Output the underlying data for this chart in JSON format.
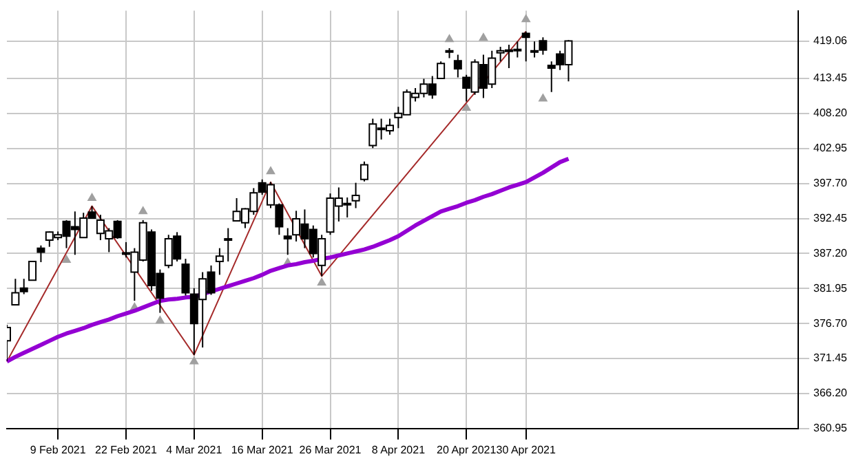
{
  "chart_data": {
    "type": "candlestick",
    "grid": true,
    "legend": false,
    "colors": [
      "#ffffff",
      "#ffffff",
      "#000000",
      "#ffffff",
      "#000000",
      "#ffffff",
      "#ffffff",
      "#000000",
      "#000000",
      "#ffffff",
      "#000000",
      "#ffffff",
      "#ffffff",
      "#000000",
      "#000000",
      "#ffffff",
      "#ffffff",
      "#000000",
      "#000000",
      "#ffffff",
      "#000000",
      "#000000",
      "#000000",
      "#ffffff",
      "#000000",
      "#ffffff",
      "#ffffff",
      "#ffffff",
      "#ffffff",
      "#ffffff",
      "#000000",
      "#ffffff",
      "#000000",
      "#000000",
      "#ffffff",
      "#000000",
      "#000000",
      "#ffffff",
      "#ffffff",
      "#ffffff",
      "#ffffff",
      "#ffffff",
      "#ffffff",
      "#ffffff",
      "#ffffff",
      "#ffffff",
      "#ffffff",
      "#ffffff",
      "#ffffff",
      "#ffffff",
      "#000000",
      "#ffffff",
      "#ffffff",
      "#000000",
      "#000000",
      "#ffffff",
      "#000000",
      "#ffffff",
      "#ffffff",
      "#ffffff",
      "#ffffff",
      "#000000",
      "#ffffff",
      "#000000",
      "#000000",
      "#000000",
      "#ffffff",
      null,
      null,
      null,
      null,
      null,
      null,
      null,
      null,
      null,
      null,
      null,
      null,
      null,
      null,
      null,
      null,
      null,
      null,
      null,
      null,
      null,
      null,
      null,
      null,
      null,
      null,
      null
    ],
    "categories": [
      null,
      null,
      null,
      null,
      null,
      null,
      "9 Feb 2021",
      null,
      null,
      null,
      null,
      null,
      null,
      null,
      "22 Feb 2021",
      null,
      null,
      null,
      null,
      null,
      null,
      null,
      "4 Mar 2021",
      null,
      null,
      null,
      null,
      null,
      null,
      null,
      "16 Mar 2021",
      null,
      null,
      null,
      null,
      null,
      null,
      null,
      "26 Mar 2021",
      null,
      null,
      null,
      null,
      null,
      null,
      null,
      "8 Apr 2021",
      null,
      null,
      null,
      null,
      null,
      null,
      null,
      "20 Apr 2021",
      null,
      null,
      null,
      null,
      null,
      null,
      "30 Apr 2021",
      null,
      null,
      null,
      null,
      null,
      null,
      null,
      null,
      null,
      null,
      null,
      null,
      null,
      null,
      null,
      null,
      null,
      null,
      null,
      null,
      null,
      null,
      null,
      null,
      null,
      null,
      null,
      null,
      null,
      null,
      null,
      null
    ],
    "ylim": [
      360.95,
      423.6
    ],
    "yticks": [
      360.95,
      {
        "value": 366.2,
        "label": "366.20"
      },
      371.45,
      {
        "value": 376.7,
        "label": "376.70"
      },
      381.95,
      {
        "value": 387.2,
        "label": "387.20"
      },
      392.45,
      {
        "value": 397.7,
        "label": "397.70"
      },
      402.95,
      {
        "value": 408.2,
        "label": "408.20"
      },
      413.45,
      419.06
    ],
    "ohlc": [
      [
        374.1,
        376.5,
        371.05,
        376.1
      ],
      [
        379.5,
        383.4,
        379.5,
        381.3
      ],
      [
        382.0,
        383.4,
        381.1,
        381.5
      ],
      [
        383.2,
        386.0,
        383.2,
        386.0
      ],
      [
        388.0,
        388.4,
        385.9,
        387.4
      ],
      [
        389.2,
        390.5,
        388.2,
        390.4
      ],
      [
        389.6,
        390.5,
        389.2,
        390.0
      ],
      [
        392.0,
        392.2,
        388.0,
        389.8
      ],
      [
        391.2,
        393.5,
        387.0,
        390.8
      ],
      [
        389.6,
        393.3,
        389.6,
        392.5
      ],
      [
        393.4,
        394.3,
        392.5,
        392.5
      ],
      [
        390.2,
        393.0,
        389.2,
        392.2
      ],
      [
        389.4,
        391.0,
        387.4,
        390.6
      ],
      [
        392.0,
        392.2,
        389.4,
        389.6
      ],
      [
        387.3,
        388.9,
        386.6,
        387.1
      ],
      [
        384.4,
        388.0,
        380.1,
        387.4
      ],
      [
        386.2,
        392.2,
        386.0,
        391.8
      ],
      [
        390.4,
        390.8,
        381.6,
        382.4
      ],
      [
        384.2,
        384.8,
        378.3,
        380.5
      ],
      [
        385.4,
        390.0,
        385.0,
        389.4
      ],
      [
        389.8,
        390.4,
        386.0,
        386.4
      ],
      [
        385.6,
        386.4,
        380.9,
        381.3
      ],
      [
        381.1,
        382.0,
        372.0,
        376.7
      ],
      [
        380.3,
        384.4,
        373.1,
        383.4
      ],
      [
        384.4,
        385.4,
        381.0,
        381.3
      ],
      [
        386.0,
        388.0,
        384.0,
        386.8
      ],
      [
        389.2,
        391.0,
        386.0,
        389.4
      ],
      [
        392.1,
        395.5,
        392.0,
        393.5
      ],
      [
        391.8,
        394.0,
        391.0,
        393.9
      ],
      [
        393.5,
        397.0,
        393.0,
        396.3
      ],
      [
        397.8,
        398.3,
        396.0,
        396.4
      ],
      [
        394.5,
        397.9,
        394.0,
        397.5
      ],
      [
        394.5,
        394.7,
        390.0,
        391.2
      ],
      [
        389.8,
        391.0,
        387.0,
        389.4
      ],
      [
        390.0,
        393.6,
        389.0,
        392.4
      ],
      [
        391.6,
        393.8,
        388.0,
        389.4
      ],
      [
        390.8,
        391.4,
        386.6,
        387.2
      ],
      [
        385.4,
        390.0,
        383.8,
        389.4
      ],
      [
        390.4,
        396.2,
        390.0,
        395.5
      ],
      [
        394.3,
        397.1,
        392.0,
        395.5
      ],
      [
        394.5,
        395.6,
        392.6,
        394.7
      ],
      [
        395.1,
        397.8,
        394.0,
        395.9
      ],
      [
        398.3,
        401.0,
        398.0,
        400.5
      ],
      [
        403.4,
        407.4,
        403.0,
        406.6
      ],
      [
        405.9,
        407.4,
        404.3,
        406.0
      ],
      [
        405.6,
        407.4,
        405.0,
        406.4
      ],
      [
        407.6,
        409.2,
        406.0,
        408.2
      ],
      [
        408.0,
        411.8,
        408.0,
        411.4
      ],
      [
        410.6,
        412.0,
        410.0,
        411.2
      ],
      [
        411.2,
        413.4,
        410.6,
        412.6
      ],
      [
        412.6,
        413.8,
        410.4,
        411.0
      ],
      [
        413.45,
        416.0,
        413.4,
        415.7
      ],
      [
        417.5,
        418.0,
        416.5,
        417.6
      ],
      [
        416.1,
        417.0,
        413.6,
        414.9
      ],
      [
        413.6,
        414.0,
        410.0,
        412.0
      ],
      [
        411.4,
        416.3,
        411.0,
        415.9
      ],
      [
        415.5,
        417.0,
        410.5,
        412.0
      ],
      [
        412.6,
        417.6,
        412.0,
        416.5
      ],
      [
        417.3,
        418.2,
        416.0,
        417.6
      ],
      [
        417.5,
        418.5,
        415.0,
        417.7
      ],
      [
        417.8,
        419.0,
        416.6,
        417.6
      ],
      [
        420.2,
        420.5,
        416.0,
        419.6
      ],
      [
        417.6,
        419.0,
        416.6,
        417.6
      ],
      [
        419.1,
        419.6,
        417.0,
        417.7
      ],
      [
        415.4,
        416.0,
        411.4,
        415.0
      ],
      [
        417.1,
        417.6,
        414.7,
        415.5
      ],
      [
        415.5,
        419.2,
        413.0,
        419.06
      ],
      null,
      null,
      null,
      null,
      null,
      null,
      null,
      null,
      null,
      null,
      null,
      null,
      null,
      null,
      null,
      null,
      null,
      null,
      null,
      null,
      null,
      null,
      null,
      null,
      null,
      null,
      null
    ],
    "series": [
      {
        "type": "line",
        "color": "#9400d3",
        "marker": "none",
        "values": [
          371.0,
          371.7,
          372.3,
          372.9,
          373.5,
          374.1,
          374.7,
          375.2,
          375.6,
          376.0,
          376.5,
          376.9,
          377.3,
          377.8,
          378.2,
          378.6,
          379.1,
          379.6,
          380.1,
          380.3,
          380.4,
          380.6,
          380.7,
          381.1,
          381.5,
          381.9,
          382.3,
          382.7,
          383.1,
          383.5,
          384.0,
          384.6,
          385.0,
          385.4,
          385.6,
          385.9,
          386.1,
          386.4,
          386.6,
          386.9,
          387.2,
          387.5,
          387.8,
          388.2,
          388.7,
          389.2,
          389.8,
          390.6,
          391.4,
          392.1,
          392.8,
          393.5,
          393.9,
          394.3,
          394.8,
          395.2,
          395.7,
          396.1,
          396.6,
          397.1,
          397.5,
          397.9,
          398.6,
          399.3,
          400.1,
          400.9,
          401.4,
          null,
          null,
          null,
          null,
          null,
          null,
          null,
          null,
          null,
          null,
          null,
          null,
          null,
          null,
          null,
          null,
          null,
          null,
          null,
          null,
          null,
          null,
          null,
          null,
          null,
          null,
          null
        ]
      },
      {
        "type": "line",
        "color": "#a52a2a",
        "marker": "none",
        "values": [
          371.0,
          null,
          null,
          null,
          null,
          null,
          null,
          null,
          null,
          null,
          394.3,
          null,
          null,
          null,
          null,
          null,
          null,
          null,
          null,
          null,
          null,
          null,
          372.0,
          null,
          null,
          null,
          null,
          null,
          null,
          null,
          null,
          397.9,
          null,
          null,
          null,
          null,
          null,
          383.8,
          null,
          null,
          null,
          null,
          null,
          null,
          null,
          null,
          null,
          null,
          null,
          null,
          null,
          null,
          null,
          null,
          null,
          null,
          null,
          null,
          null,
          null,
          null,
          420.5,
          null,
          null,
          null,
          null,
          null,
          null,
          null,
          null,
          null,
          null,
          null,
          null,
          null,
          null,
          null,
          null,
          null,
          null,
          null,
          null,
          null,
          null,
          null,
          null,
          null,
          null,
          null,
          null,
          null,
          null,
          null,
          null
        ]
      },
      {
        "type": "scatter",
        "color": "#a0a0a0",
        "marker": "triangle",
        "values": [
          null,
          null,
          null,
          null,
          null,
          null,
          null,
          386.2,
          null,
          null,
          395.5,
          null,
          null,
          null,
          null,
          379.1,
          393.5,
          null,
          377.1,
          null,
          null,
          null,
          371.0,
          null,
          null,
          null,
          null,
          null,
          null,
          null,
          null,
          399.5,
          null,
          385.8,
          null,
          null,
          null,
          382.8,
          null,
          null,
          null,
          null,
          null,
          null,
          null,
          null,
          null,
          null,
          null,
          null,
          null,
          null,
          419.3,
          null,
          409.0,
          null,
          419.5,
          null,
          null,
          null,
          null,
          422.3,
          null,
          410.4,
          null,
          null,
          null,
          null,
          null,
          null,
          null,
          null,
          null,
          null,
          null,
          null,
          null,
          null,
          null,
          null,
          null,
          null,
          null,
          null,
          null,
          null,
          null,
          null,
          null,
          null,
          null,
          null,
          null,
          null
        ]
      }
    ]
  }
}
